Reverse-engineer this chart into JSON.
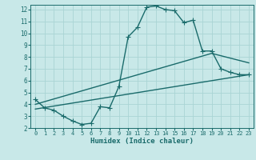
{
  "title": "",
  "xlabel": "Humidex (Indice chaleur)",
  "bg_color": "#c8e8e8",
  "line_color": "#1a6b6b",
  "grid_color": "#aad4d4",
  "xlim": [
    -0.5,
    23.5
  ],
  "ylim": [
    2,
    12.4
  ],
  "xticks": [
    0,
    1,
    2,
    3,
    4,
    5,
    6,
    7,
    8,
    9,
    10,
    11,
    12,
    13,
    14,
    15,
    16,
    17,
    18,
    19,
    20,
    21,
    22,
    23
  ],
  "yticks": [
    2,
    3,
    4,
    5,
    6,
    7,
    8,
    9,
    10,
    11,
    12
  ],
  "curve1_x": [
    0,
    1,
    2,
    3,
    4,
    5,
    6,
    7,
    8,
    9,
    10,
    11,
    12,
    13,
    14,
    15,
    16,
    17,
    18,
    19,
    20,
    21,
    22,
    23
  ],
  "curve1_y": [
    4.4,
    3.7,
    3.5,
    3.0,
    2.6,
    2.3,
    2.4,
    3.8,
    3.7,
    5.5,
    9.7,
    10.5,
    12.2,
    12.3,
    12.0,
    11.9,
    10.9,
    11.1,
    8.5,
    8.5,
    7.0,
    6.7,
    6.5,
    6.5
  ],
  "curve2_x": [
    0,
    23
  ],
  "curve2_y": [
    3.6,
    6.5
  ],
  "curve3_x": [
    0,
    19,
    23
  ],
  "curve3_y": [
    4.0,
    8.3,
    7.5
  ],
  "markersize": 3,
  "linewidth": 1.0
}
